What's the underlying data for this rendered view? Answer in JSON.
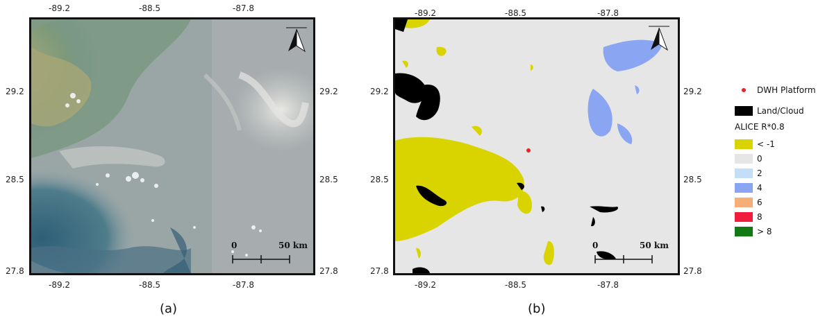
{
  "lon_ticks": [
    "-89.2",
    "-88.5",
    "-87.8"
  ],
  "lat_ticks": [
    "29.2",
    "28.5",
    "27.8"
  ],
  "panel_a": {
    "label": "(a)"
  },
  "panel_b": {
    "label": "(b)"
  },
  "scale_bar": {
    "zero": "0",
    "distance": "50 km"
  },
  "legend": {
    "platform": {
      "label": "DWH Platform",
      "color": "#e8232a"
    },
    "land_cloud": {
      "label": "Land/Cloud",
      "color": "#000000"
    },
    "title": "ALICE R*0.8",
    "classes": [
      {
        "label": "< -1",
        "color": "#d9d400"
      },
      {
        "label": "0",
        "color": "#e6e6e6"
      },
      {
        "label": "2",
        "color": "#c3def7"
      },
      {
        "label": "4",
        "color": "#8aa6f2"
      },
      {
        "label": "6",
        "color": "#f7ad78"
      },
      {
        "label": "8",
        "color": "#f01e3c"
      },
      {
        "label": "> 8",
        "color": "#127a14"
      }
    ]
  },
  "colors": {
    "satellite_water": "#a5abb0",
    "satellite_coastal": "#5a8a8a",
    "satellite_land": "#8aa27a",
    "map_background": "#e6e6e6"
  }
}
